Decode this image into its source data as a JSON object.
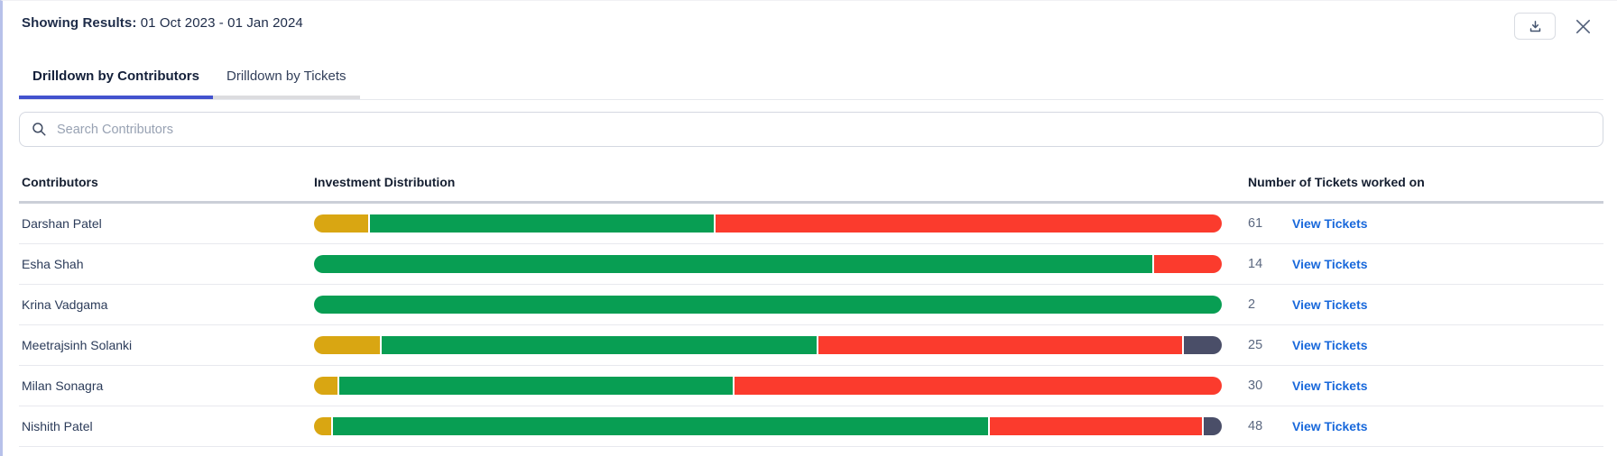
{
  "header": {
    "results_label": "Showing Results:",
    "results_range": "01 Oct 2023 - 01 Jan 2024"
  },
  "tabs": [
    {
      "label": "Drilldown by Contributors",
      "active": true
    },
    {
      "label": "Drilldown by Tickets",
      "active": false
    }
  ],
  "search": {
    "placeholder": "Search Contributors"
  },
  "table": {
    "columns": [
      "Contributors",
      "Investment Distribution",
      "Number of Tickets worked on"
    ],
    "link_label": "View Tickets",
    "rows": [
      {
        "name": "Darshan Patel",
        "tickets": "61",
        "segments": [
          {
            "color": "gold",
            "pct": 6.0
          },
          {
            "color": "green",
            "pct": 38.0
          },
          {
            "color": "red",
            "pct": 56.0
          }
        ]
      },
      {
        "name": "Esha Shah",
        "tickets": "14",
        "segments": [
          {
            "color": "green",
            "pct": 92.5
          },
          {
            "color": "red",
            "pct": 7.5
          }
        ]
      },
      {
        "name": "Krina Vadgama",
        "tickets": "2",
        "segments": [
          {
            "color": "green",
            "pct": 100
          }
        ]
      },
      {
        "name": "Meetrajsinh Solanki",
        "tickets": "25",
        "segments": [
          {
            "color": "gold",
            "pct": 7.3
          },
          {
            "color": "green",
            "pct": 48.2
          },
          {
            "color": "red",
            "pct": 40.3
          },
          {
            "color": "slate",
            "pct": 4.2
          }
        ]
      },
      {
        "name": "Milan Sonagra",
        "tickets": "30",
        "segments": [
          {
            "color": "gold",
            "pct": 2.6
          },
          {
            "color": "green",
            "pct": 43.5
          },
          {
            "color": "red",
            "pct": 53.9
          }
        ]
      },
      {
        "name": "Nishith Patel",
        "tickets": "48",
        "segments": [
          {
            "color": "gold",
            "pct": 1.9
          },
          {
            "color": "green",
            "pct": 72.6
          },
          {
            "color": "red",
            "pct": 23.5
          },
          {
            "color": "slate",
            "pct": 2.0
          }
        ]
      }
    ]
  },
  "colors": {
    "accent_tab": "#4353CE",
    "link_blue": "#1868DB",
    "bar_gold": "#D9A612",
    "bar_green": "#089E53",
    "bar_red": "#FB3B2D",
    "bar_slate": "#4A4E68"
  }
}
